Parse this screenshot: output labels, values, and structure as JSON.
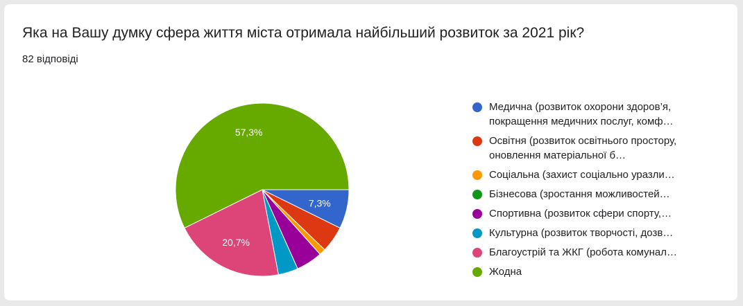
{
  "question": "Яка на Вашу думку сфера життя міста отримала найбільший розвиток за 2021 рік?",
  "response_count": "82 відповіді",
  "chart_data": {
    "type": "pie",
    "title": "",
    "slices": [
      {
        "name": "Медична (розвиток охорони здоров’я, покращення медичних послуг, комф…",
        "value": 7.3,
        "color": "#3366cc",
        "label": "7,3%",
        "lines": 2
      },
      {
        "name": "Освітня (розвиток освітнього простору, оновлення матеріальної б…",
        "value": 4.9,
        "color": "#dc3912",
        "label": "",
        "lines": 2
      },
      {
        "name": "Соціальна (захист соціально уразли…",
        "value": 1.2,
        "color": "#ff9900",
        "label": "",
        "lines": 1
      },
      {
        "name": "Бізнесова (зростання можливостей…",
        "value": 0,
        "color": "#109618",
        "label": "",
        "lines": 1
      },
      {
        "name": "Спортивна (розвиток сфери спорту,…",
        "value": 4.9,
        "color": "#990099",
        "label": "",
        "lines": 1
      },
      {
        "name": "Культурна (розвиток творчості, дозв…",
        "value": 3.7,
        "color": "#0099c6",
        "label": "",
        "lines": 1
      },
      {
        "name": "Благоустрій та ЖКГ (робота комунал…",
        "value": 20.7,
        "color": "#dd4477",
        "label": "20,7%",
        "lines": 1
      },
      {
        "name": "Жодна",
        "value": 57.3,
        "color": "#66aa00",
        "label": "57,3%",
        "lines": 1
      }
    ]
  }
}
